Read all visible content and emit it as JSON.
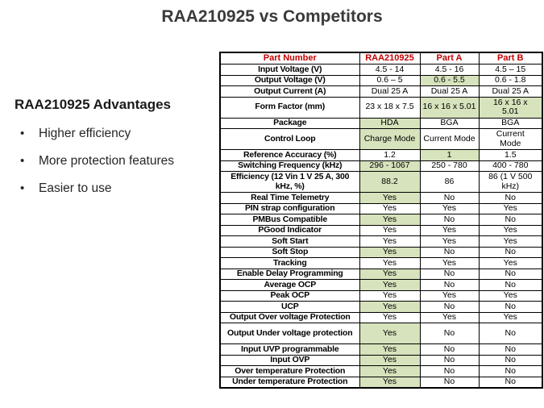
{
  "title": "RAA210925 vs Competitors",
  "advantages": {
    "heading": "RAA210925 Advantages",
    "bullet_glyph": "•",
    "bullets": [
      "Higher efficiency",
      "More protection features",
      "Easier to use"
    ]
  },
  "colors": {
    "header_red": "#c00000",
    "highlight_green": "#d6e3bc"
  },
  "table": {
    "headers": [
      "Part Number",
      "RAA210925",
      "Part A",
      "Part B"
    ],
    "rows": [
      {
        "label": "Input Voltage (V)",
        "tall": false,
        "cells": [
          {
            "text": "4.5 - 14",
            "hl": false
          },
          {
            "text": "4.5 - 16",
            "hl": false
          },
          {
            "text": "4.5 – 15",
            "hl": false
          }
        ]
      },
      {
        "label": "Output Voltage (V)",
        "tall": false,
        "cells": [
          {
            "text": "0.6 – 5",
            "hl": false
          },
          {
            "text": "0.6 - 5.5",
            "hl": true
          },
          {
            "text": "0.6 - 1.8",
            "hl": false
          }
        ]
      },
      {
        "label": "Output Current (A)",
        "tall": false,
        "cells": [
          {
            "text": "Dual 25 A",
            "hl": false
          },
          {
            "text": "Dual 25 A",
            "hl": false
          },
          {
            "text": "Dual 25 A",
            "hl": false
          }
        ]
      },
      {
        "label": "Form Factor (mm)",
        "tall": true,
        "cells": [
          {
            "text": "23 x 18 x 7.5",
            "hl": false
          },
          {
            "text": "16 x 16 x 5.01",
            "hl": true
          },
          {
            "text": "16 x 16 x\n5.01",
            "hl": true
          }
        ]
      },
      {
        "label": "Package",
        "tall": false,
        "cells": [
          {
            "text": "HDA",
            "hl": true
          },
          {
            "text": "BGA",
            "hl": false
          },
          {
            "text": "BGA",
            "hl": false
          }
        ]
      },
      {
        "label": "Control Loop",
        "tall": true,
        "cells": [
          {
            "text": "Charge Mode",
            "hl": true
          },
          {
            "text": "Current Mode",
            "hl": false
          },
          {
            "text": "Current\nMode",
            "hl": false
          }
        ]
      },
      {
        "label": "Reference Accuracy (%)",
        "tall": false,
        "cells": [
          {
            "text": "1.2",
            "hl": false
          },
          {
            "text": "1",
            "hl": true
          },
          {
            "text": "1.5",
            "hl": false
          }
        ]
      },
      {
        "label": "Switching Frequency (kHz)",
        "tall": false,
        "cells": [
          {
            "text": "296 - 1067",
            "hl": true
          },
          {
            "text": "250 - 780",
            "hl": false
          },
          {
            "text": "400 - 780",
            "hl": false
          }
        ]
      },
      {
        "label": "Efficiency (12 Vin 1 V 25 A, 300 kHz, %)",
        "tall": true,
        "cells": [
          {
            "text": "88.2",
            "hl": true
          },
          {
            "text": "86",
            "hl": false
          },
          {
            "text": "86 (1 V 500\nkHz)",
            "hl": false
          }
        ]
      },
      {
        "label": "Real Time Telemetry",
        "tall": false,
        "cells": [
          {
            "text": "Yes",
            "hl": true
          },
          {
            "text": "No",
            "hl": false
          },
          {
            "text": "No",
            "hl": false
          }
        ]
      },
      {
        "label": "PIN strap configuration",
        "tall": false,
        "cells": [
          {
            "text": "Yes",
            "hl": false
          },
          {
            "text": "Yes",
            "hl": false
          },
          {
            "text": "Yes",
            "hl": false
          }
        ]
      },
      {
        "label": "PMBus Compatible",
        "tall": false,
        "cells": [
          {
            "text": "Yes",
            "hl": true
          },
          {
            "text": "No",
            "hl": false
          },
          {
            "text": "No",
            "hl": false
          }
        ]
      },
      {
        "label": "PGood Indicator",
        "tall": false,
        "cells": [
          {
            "text": "Yes",
            "hl": false
          },
          {
            "text": "Yes",
            "hl": false
          },
          {
            "text": "Yes",
            "hl": false
          }
        ]
      },
      {
        "label": "Soft Start",
        "tall": false,
        "cells": [
          {
            "text": "Yes",
            "hl": false
          },
          {
            "text": "Yes",
            "hl": false
          },
          {
            "text": "Yes",
            "hl": false
          }
        ]
      },
      {
        "label": "Soft Stop",
        "tall": false,
        "cells": [
          {
            "text": "Yes",
            "hl": true
          },
          {
            "text": "No",
            "hl": false
          },
          {
            "text": "No",
            "hl": false
          }
        ]
      },
      {
        "label": "Tracking",
        "tall": false,
        "cells": [
          {
            "text": "Yes",
            "hl": false
          },
          {
            "text": "Yes",
            "hl": false
          },
          {
            "text": "Yes",
            "hl": false
          }
        ]
      },
      {
        "label": "Enable Delay Programming",
        "tall": false,
        "cells": [
          {
            "text": "Yes",
            "hl": true
          },
          {
            "text": "No",
            "hl": false
          },
          {
            "text": "No",
            "hl": false
          }
        ]
      },
      {
        "label": "Average OCP",
        "tall": false,
        "cells": [
          {
            "text": "Yes",
            "hl": true
          },
          {
            "text": "No",
            "hl": false
          },
          {
            "text": "No",
            "hl": false
          }
        ]
      },
      {
        "label": "Peak OCP",
        "tall": false,
        "cells": [
          {
            "text": "Yes",
            "hl": false
          },
          {
            "text": "Yes",
            "hl": false
          },
          {
            "text": "Yes",
            "hl": false
          }
        ]
      },
      {
        "label": "UCP",
        "tall": false,
        "cells": [
          {
            "text": "Yes",
            "hl": true
          },
          {
            "text": "No",
            "hl": false
          },
          {
            "text": "No",
            "hl": false
          }
        ]
      },
      {
        "label": "Output Over voltage Protection",
        "tall": false,
        "cells": [
          {
            "text": "Yes",
            "hl": false
          },
          {
            "text": "Yes",
            "hl": false
          },
          {
            "text": "Yes",
            "hl": false
          }
        ]
      },
      {
        "label": "Output Under voltage protection",
        "tall": true,
        "cells": [
          {
            "text": "Yes",
            "hl": true
          },
          {
            "text": "No",
            "hl": false
          },
          {
            "text": "No",
            "hl": false
          }
        ]
      },
      {
        "label": "Input UVP programmable",
        "tall": false,
        "cells": [
          {
            "text": "Yes",
            "hl": true
          },
          {
            "text": "No",
            "hl": false
          },
          {
            "text": "No",
            "hl": false
          }
        ]
      },
      {
        "label": "Input OVP",
        "tall": false,
        "cells": [
          {
            "text": "Yes",
            "hl": true
          },
          {
            "text": "No",
            "hl": false
          },
          {
            "text": "No",
            "hl": false
          }
        ]
      },
      {
        "label": "Over temperature Protection",
        "tall": false,
        "cells": [
          {
            "text": "Yes",
            "hl": true
          },
          {
            "text": "No",
            "hl": false
          },
          {
            "text": "No",
            "hl": false
          }
        ]
      },
      {
        "label": "Under temperature Protection",
        "tall": false,
        "cells": [
          {
            "text": "Yes",
            "hl": true
          },
          {
            "text": "No",
            "hl": false
          },
          {
            "text": "No",
            "hl": false
          }
        ]
      }
    ]
  }
}
